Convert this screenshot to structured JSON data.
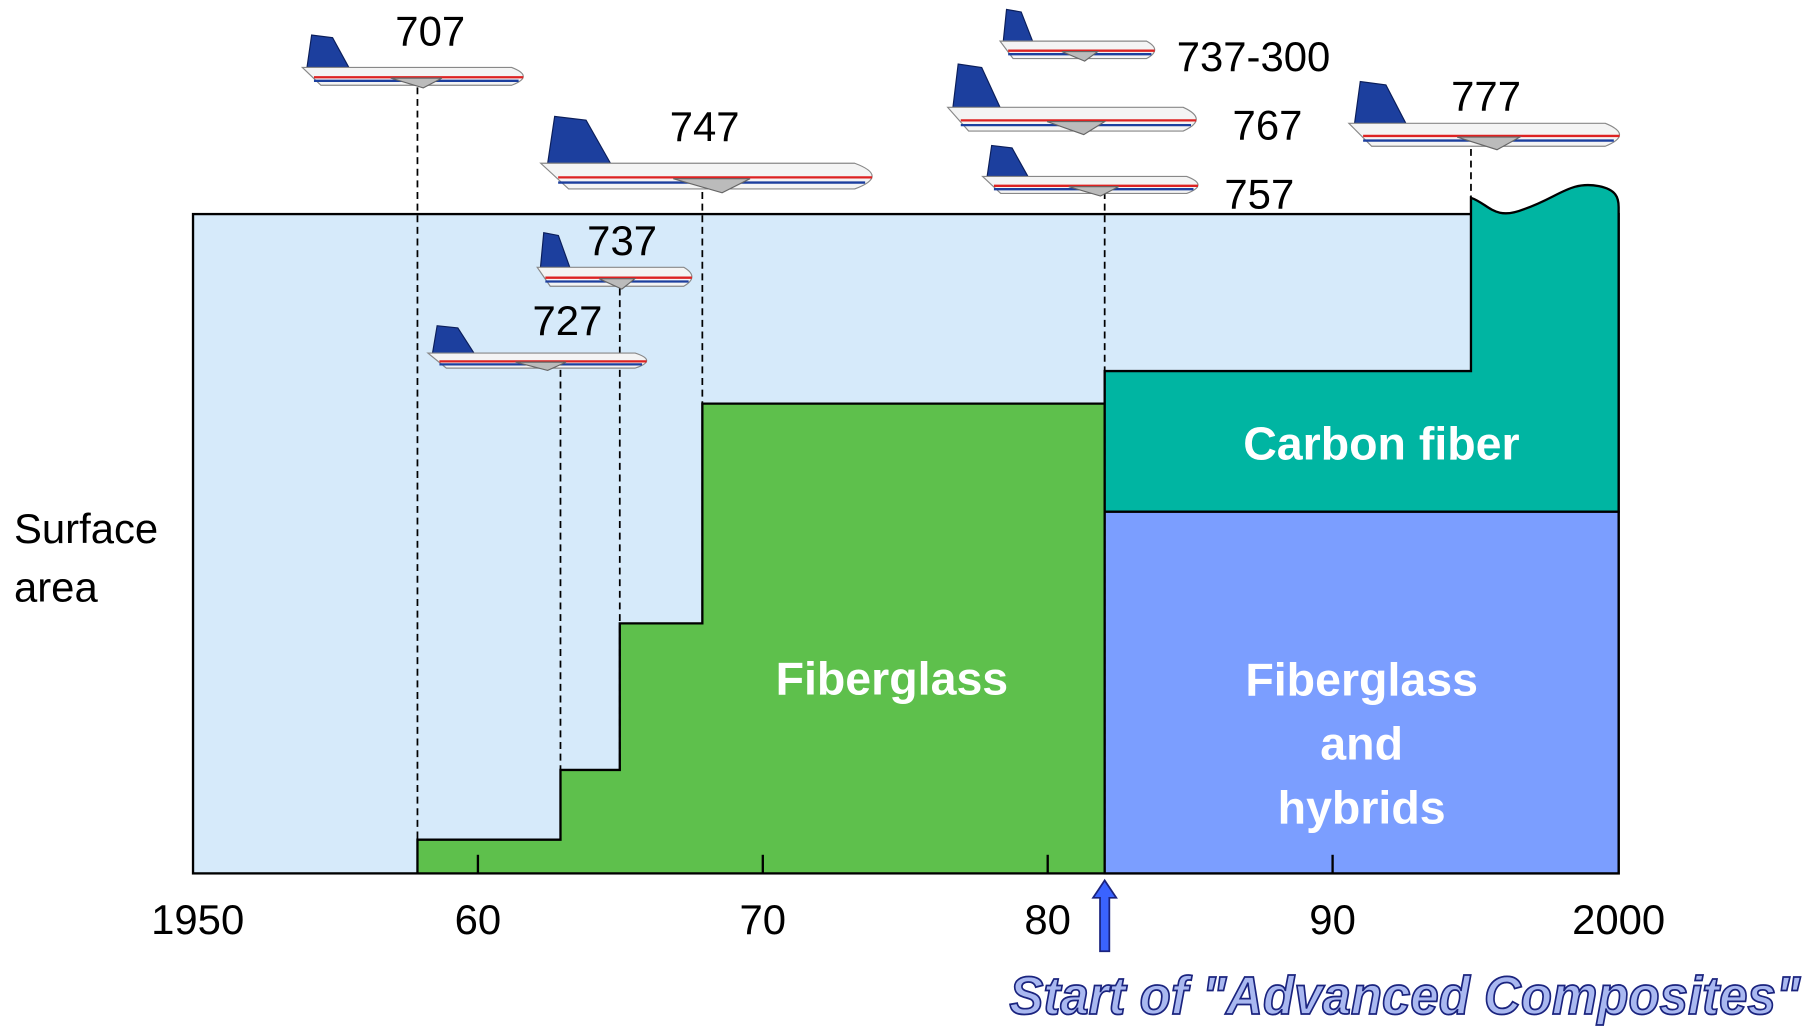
{
  "y_axis_label": [
    "Surface",
    "area"
  ],
  "x_axis": {
    "ticks": [
      "1950",
      "60",
      "70",
      "80",
      "90",
      "2000"
    ]
  },
  "aircraft": [
    "707",
    "727",
    "737",
    "747",
    "737-300",
    "767",
    "757",
    "777"
  ],
  "regions": {
    "fiberglass": "Fiberglass",
    "carbon_fiber": "Carbon fiber",
    "hybrids": [
      "Fiberglass",
      "and",
      "hybrids"
    ]
  },
  "annotation": "Start of \"Advanced Composites\""
}
